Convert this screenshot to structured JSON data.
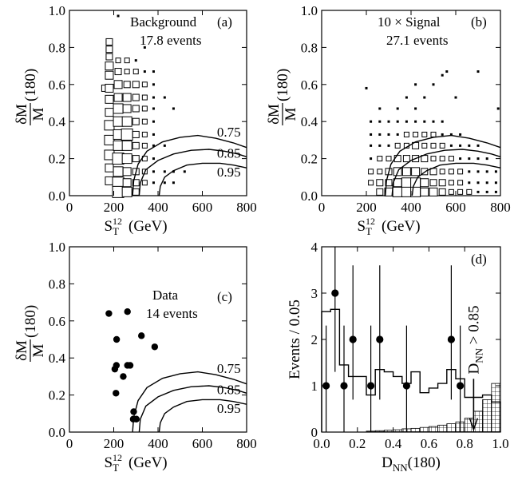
{
  "chart_data": [
    {
      "id": "a",
      "type": "scatter",
      "title": "Background",
      "panel_label": "(a)",
      "subtitle": "17.8 events",
      "xlabel_main": "S",
      "xlabel_sub": "T",
      "xlabel_sup": "12",
      "xlabel_unit": "(GeV)",
      "ylabel_main": "δM",
      "ylabel_den": "M",
      "ylabel_arg": "(180)",
      "xlim": [
        0,
        800
      ],
      "ylim": [
        0,
        1.0
      ],
      "xticks": [
        "0",
        "200",
        "400",
        "600",
        "800"
      ],
      "yticks": [
        "0.0",
        "0.2",
        "0.4",
        "0.6",
        "0.8",
        "1.0"
      ],
      "contour_labels": [
        "0.75",
        "0.85",
        "0.95"
      ],
      "points": [
        [
          220,
          0.97,
          1
        ],
        [
          160,
          0.58,
          3
        ],
        [
          180,
          0.83,
          3
        ],
        [
          180,
          0.79,
          3
        ],
        [
          180,
          0.75,
          3
        ],
        [
          180,
          0.7,
          4
        ],
        [
          180,
          0.65,
          4
        ],
        [
          180,
          0.58,
          4
        ],
        [
          180,
          0.52,
          4
        ],
        [
          180,
          0.45,
          4
        ],
        [
          180,
          0.38,
          5
        ],
        [
          180,
          0.3,
          5
        ],
        [
          180,
          0.22,
          5
        ],
        [
          180,
          0.15,
          4
        ],
        [
          180,
          0.08,
          4
        ],
        [
          220,
          0.73,
          2
        ],
        [
          220,
          0.67,
          3
        ],
        [
          220,
          0.6,
          4
        ],
        [
          220,
          0.53,
          4
        ],
        [
          220,
          0.47,
          5
        ],
        [
          220,
          0.4,
          5
        ],
        [
          220,
          0.33,
          5
        ],
        [
          220,
          0.27,
          5
        ],
        [
          220,
          0.2,
          6
        ],
        [
          220,
          0.13,
          5
        ],
        [
          220,
          0.07,
          6
        ],
        [
          220,
          0.02,
          6
        ],
        [
          260,
          0.73,
          2
        ],
        [
          260,
          0.67,
          2
        ],
        [
          260,
          0.6,
          3
        ],
        [
          260,
          0.53,
          4
        ],
        [
          260,
          0.47,
          4
        ],
        [
          260,
          0.4,
          5
        ],
        [
          260,
          0.33,
          6
        ],
        [
          260,
          0.27,
          5
        ],
        [
          260,
          0.2,
          5
        ],
        [
          260,
          0.13,
          4
        ],
        [
          260,
          0.07,
          4
        ],
        [
          260,
          0.02,
          5
        ],
        [
          300,
          0.73,
          1
        ],
        [
          300,
          0.67,
          2
        ],
        [
          300,
          0.6,
          3
        ],
        [
          300,
          0.53,
          3
        ],
        [
          300,
          0.47,
          3
        ],
        [
          300,
          0.4,
          3
        ],
        [
          300,
          0.33,
          3
        ],
        [
          300,
          0.27,
          3
        ],
        [
          300,
          0.2,
          3
        ],
        [
          300,
          0.13,
          3
        ],
        [
          300,
          0.07,
          3
        ],
        [
          300,
          0.02,
          3
        ],
        [
          340,
          0.8,
          1
        ],
        [
          340,
          0.67,
          1
        ],
        [
          340,
          0.6,
          2
        ],
        [
          340,
          0.53,
          2
        ],
        [
          340,
          0.47,
          2
        ],
        [
          340,
          0.4,
          2
        ],
        [
          340,
          0.33,
          2
        ],
        [
          340,
          0.27,
          2
        ],
        [
          340,
          0.2,
          2
        ],
        [
          340,
          0.13,
          2
        ],
        [
          340,
          0.07,
          2
        ],
        [
          380,
          0.67,
          1
        ],
        [
          380,
          0.6,
          1
        ],
        [
          380,
          0.53,
          1
        ],
        [
          380,
          0.47,
          1
        ],
        [
          380,
          0.4,
          1
        ],
        [
          380,
          0.33,
          1
        ],
        [
          380,
          0.27,
          1
        ],
        [
          380,
          0.2,
          1
        ],
        [
          380,
          0.13,
          1
        ],
        [
          380,
          0.07,
          1
        ],
        [
          430,
          0.53,
          1
        ],
        [
          430,
          0.27,
          1
        ],
        [
          430,
          0.13,
          1
        ],
        [
          430,
          0.07,
          1
        ],
        [
          470,
          0.47,
          1
        ],
        [
          470,
          0.13,
          1
        ],
        [
          470,
          0.07,
          1
        ],
        [
          520,
          0.13,
          1
        ]
      ]
    },
    {
      "id": "b",
      "type": "scatter",
      "title": "10 × Signal",
      "panel_label": "(b)",
      "subtitle": "27.1 events",
      "xlabel_main": "S",
      "xlabel_sub": "T",
      "xlabel_sup": "12",
      "xlabel_unit": "(GeV)",
      "ylabel_main": "δM",
      "ylabel_den": "M",
      "ylabel_arg": "(180)",
      "xlim": [
        0,
        800
      ],
      "ylim": [
        0,
        1.0
      ],
      "xticks": [
        "0",
        "200",
        "400",
        "600",
        "800"
      ],
      "yticks": [
        "0.0",
        "0.2",
        "0.4",
        "0.6",
        "0.8",
        "1.0"
      ],
      "points": [
        [
          200,
          0.58,
          1
        ],
        [
          260,
          0.47,
          1
        ],
        [
          300,
          0.4,
          1
        ],
        [
          340,
          0.47,
          1
        ],
        [
          380,
          0.53,
          1
        ],
        [
          420,
          0.6,
          1
        ],
        [
          460,
          0.53,
          1
        ],
        [
          500,
          0.6,
          1
        ],
        [
          540,
          0.65,
          1
        ],
        [
          560,
          0.67,
          1
        ],
        [
          600,
          0.53,
          1
        ],
        [
          700,
          0.67,
          1
        ],
        [
          790,
          0.47,
          1
        ],
        [
          220,
          0.4,
          1
        ],
        [
          220,
          0.33,
          1
        ],
        [
          220,
          0.27,
          1
        ],
        [
          220,
          0.2,
          1
        ],
        [
          220,
          0.13,
          2
        ],
        [
          220,
          0.07,
          2
        ],
        [
          260,
          0.4,
          1
        ],
        [
          260,
          0.33,
          1
        ],
        [
          260,
          0.27,
          1
        ],
        [
          260,
          0.2,
          2
        ],
        [
          260,
          0.13,
          2
        ],
        [
          260,
          0.07,
          3
        ],
        [
          260,
          0.02,
          3
        ],
        [
          300,
          0.33,
          1
        ],
        [
          300,
          0.27,
          1
        ],
        [
          300,
          0.2,
          2
        ],
        [
          300,
          0.13,
          3
        ],
        [
          300,
          0.07,
          3
        ],
        [
          300,
          0.02,
          4
        ],
        [
          340,
          0.4,
          1
        ],
        [
          340,
          0.33,
          1
        ],
        [
          340,
          0.27,
          2
        ],
        [
          340,
          0.2,
          3
        ],
        [
          340,
          0.13,
          4
        ],
        [
          340,
          0.07,
          4
        ],
        [
          340,
          0.02,
          5
        ],
        [
          380,
          0.4,
          1
        ],
        [
          380,
          0.33,
          2
        ],
        [
          380,
          0.27,
          2
        ],
        [
          380,
          0.2,
          3
        ],
        [
          380,
          0.13,
          4
        ],
        [
          380,
          0.07,
          5
        ],
        [
          380,
          0.02,
          5
        ],
        [
          420,
          0.47,
          1
        ],
        [
          420,
          0.4,
          1
        ],
        [
          420,
          0.33,
          2
        ],
        [
          420,
          0.27,
          3
        ],
        [
          420,
          0.2,
          3
        ],
        [
          420,
          0.13,
          4
        ],
        [
          420,
          0.07,
          5
        ],
        [
          420,
          0.02,
          5
        ],
        [
          460,
          0.4,
          1
        ],
        [
          460,
          0.33,
          2
        ],
        [
          460,
          0.27,
          2
        ],
        [
          460,
          0.2,
          3
        ],
        [
          460,
          0.13,
          3
        ],
        [
          460,
          0.07,
          4
        ],
        [
          460,
          0.02,
          4
        ],
        [
          500,
          0.4,
          1
        ],
        [
          500,
          0.33,
          2
        ],
        [
          500,
          0.27,
          2
        ],
        [
          500,
          0.2,
          2
        ],
        [
          500,
          0.13,
          3
        ],
        [
          500,
          0.07,
          3
        ],
        [
          500,
          0.02,
          4
        ],
        [
          540,
          0.4,
          1
        ],
        [
          540,
          0.33,
          1
        ],
        [
          540,
          0.27,
          2
        ],
        [
          540,
          0.2,
          2
        ],
        [
          540,
          0.13,
          2
        ],
        [
          540,
          0.07,
          3
        ],
        [
          540,
          0.02,
          3
        ],
        [
          580,
          0.33,
          1
        ],
        [
          580,
          0.27,
          1
        ],
        [
          580,
          0.2,
          2
        ],
        [
          580,
          0.13,
          2
        ],
        [
          580,
          0.07,
          2
        ],
        [
          580,
          0.02,
          2
        ],
        [
          620,
          0.33,
          1
        ],
        [
          620,
          0.27,
          1
        ],
        [
          620,
          0.2,
          1
        ],
        [
          620,
          0.13,
          2
        ],
        [
          620,
          0.07,
          2
        ],
        [
          620,
          0.02,
          2
        ],
        [
          660,
          0.27,
          1
        ],
        [
          660,
          0.2,
          1
        ],
        [
          660,
          0.13,
          1
        ],
        [
          660,
          0.07,
          1
        ],
        [
          660,
          0.02,
          2
        ],
        [
          700,
          0.27,
          1
        ],
        [
          700,
          0.2,
          1
        ],
        [
          700,
          0.13,
          1
        ],
        [
          700,
          0.07,
          1
        ],
        [
          700,
          0.02,
          1
        ],
        [
          740,
          0.2,
          1
        ],
        [
          740,
          0.13,
          1
        ],
        [
          740,
          0.07,
          1
        ],
        [
          740,
          0.02,
          1
        ],
        [
          780,
          0.13,
          1
        ],
        [
          780,
          0.07,
          1
        ],
        [
          780,
          0.02,
          1
        ]
      ]
    },
    {
      "id": "c",
      "type": "scatter",
      "title": "Data",
      "panel_label": "(c)",
      "subtitle": "14 events",
      "xlabel_main": "S",
      "xlabel_sub": "T",
      "xlabel_sup": "12",
      "xlabel_unit": "(GeV)",
      "ylabel_main": "δM",
      "ylabel_den": "M",
      "ylabel_arg": "(180)",
      "xlim": [
        0,
        800
      ],
      "ylim": [
        0,
        1.0
      ],
      "xticks": [
        "0",
        "200",
        "400",
        "600",
        "800"
      ],
      "yticks": [
        "0.0",
        "0.2",
        "0.4",
        "0.6",
        "0.8",
        "1.0"
      ],
      "contour_labels": [
        "0.75",
        "0.85",
        "0.95"
      ],
      "points": [
        [
          178,
          0.64
        ],
        [
          213,
          0.5
        ],
        [
          262,
          0.65
        ],
        [
          325,
          0.52
        ],
        [
          385,
          0.46
        ],
        [
          212,
          0.36
        ],
        [
          205,
          0.34
        ],
        [
          262,
          0.36
        ],
        [
          274,
          0.36
        ],
        [
          243,
          0.3
        ],
        [
          210,
          0.21
        ],
        [
          290,
          0.11
        ],
        [
          288,
          0.07
        ],
        [
          302,
          0.07
        ]
      ]
    },
    {
      "id": "d",
      "type": "bar",
      "panel_label": "(d)",
      "xlabel_main": "D",
      "xlabel_sub": "NN",
      "xlabel_arg": "(180)",
      "ylabel": "Events / 0.05",
      "annotation_main": "D",
      "annotation_sub": "NN",
      "annotation_tail": " > 0.85",
      "xlim": [
        0.0,
        1.0
      ],
      "ylim": [
        0,
        4
      ],
      "xticks": [
        "0.0",
        "0.2",
        "0.4",
        "0.6",
        "0.8",
        "1.0"
      ],
      "yticks": [
        "0",
        "1",
        "2",
        "3",
        "4"
      ],
      "background_hist": [
        2.6,
        2.65,
        1.45,
        1.2,
        1.2,
        0.8,
        1.35,
        1.3,
        1.2,
        1.05,
        1.3,
        0.85,
        0.95,
        1.05,
        1.35,
        1.15,
        0.75,
        0.75,
        0.8,
        0.65
      ],
      "signal_hist": [
        0.0,
        0.0,
        0.0,
        0.0,
        0.0,
        0.02,
        0.03,
        0.04,
        0.05,
        0.07,
        0.08,
        0.1,
        0.12,
        0.15,
        0.18,
        0.22,
        0.3,
        0.45,
        0.7,
        1.05
      ],
      "data_points": [
        {
          "x": 0.025,
          "y": 1,
          "err_lo": 0.0,
          "err_hi": 2.3
        },
        {
          "x": 0.075,
          "y": 3,
          "err_lo": 1.3,
          "err_hi": 4.0
        },
        {
          "x": 0.125,
          "y": 1,
          "err_lo": 0.0,
          "err_hi": 2.3
        },
        {
          "x": 0.175,
          "y": 2,
          "err_lo": 0.7,
          "err_hi": 3.6
        },
        {
          "x": 0.275,
          "y": 1,
          "err_lo": 0.0,
          "err_hi": 2.3
        },
        {
          "x": 0.325,
          "y": 2,
          "err_lo": 0.7,
          "err_hi": 3.6
        },
        {
          "x": 0.475,
          "y": 1,
          "err_lo": 0.0,
          "err_hi": 2.3
        },
        {
          "x": 0.725,
          "y": 2,
          "err_lo": 0.7,
          "err_hi": 3.6
        },
        {
          "x": 0.775,
          "y": 1,
          "err_lo": 0.0,
          "err_hi": 2.3
        }
      ],
      "cut_value": 0.85
    }
  ]
}
